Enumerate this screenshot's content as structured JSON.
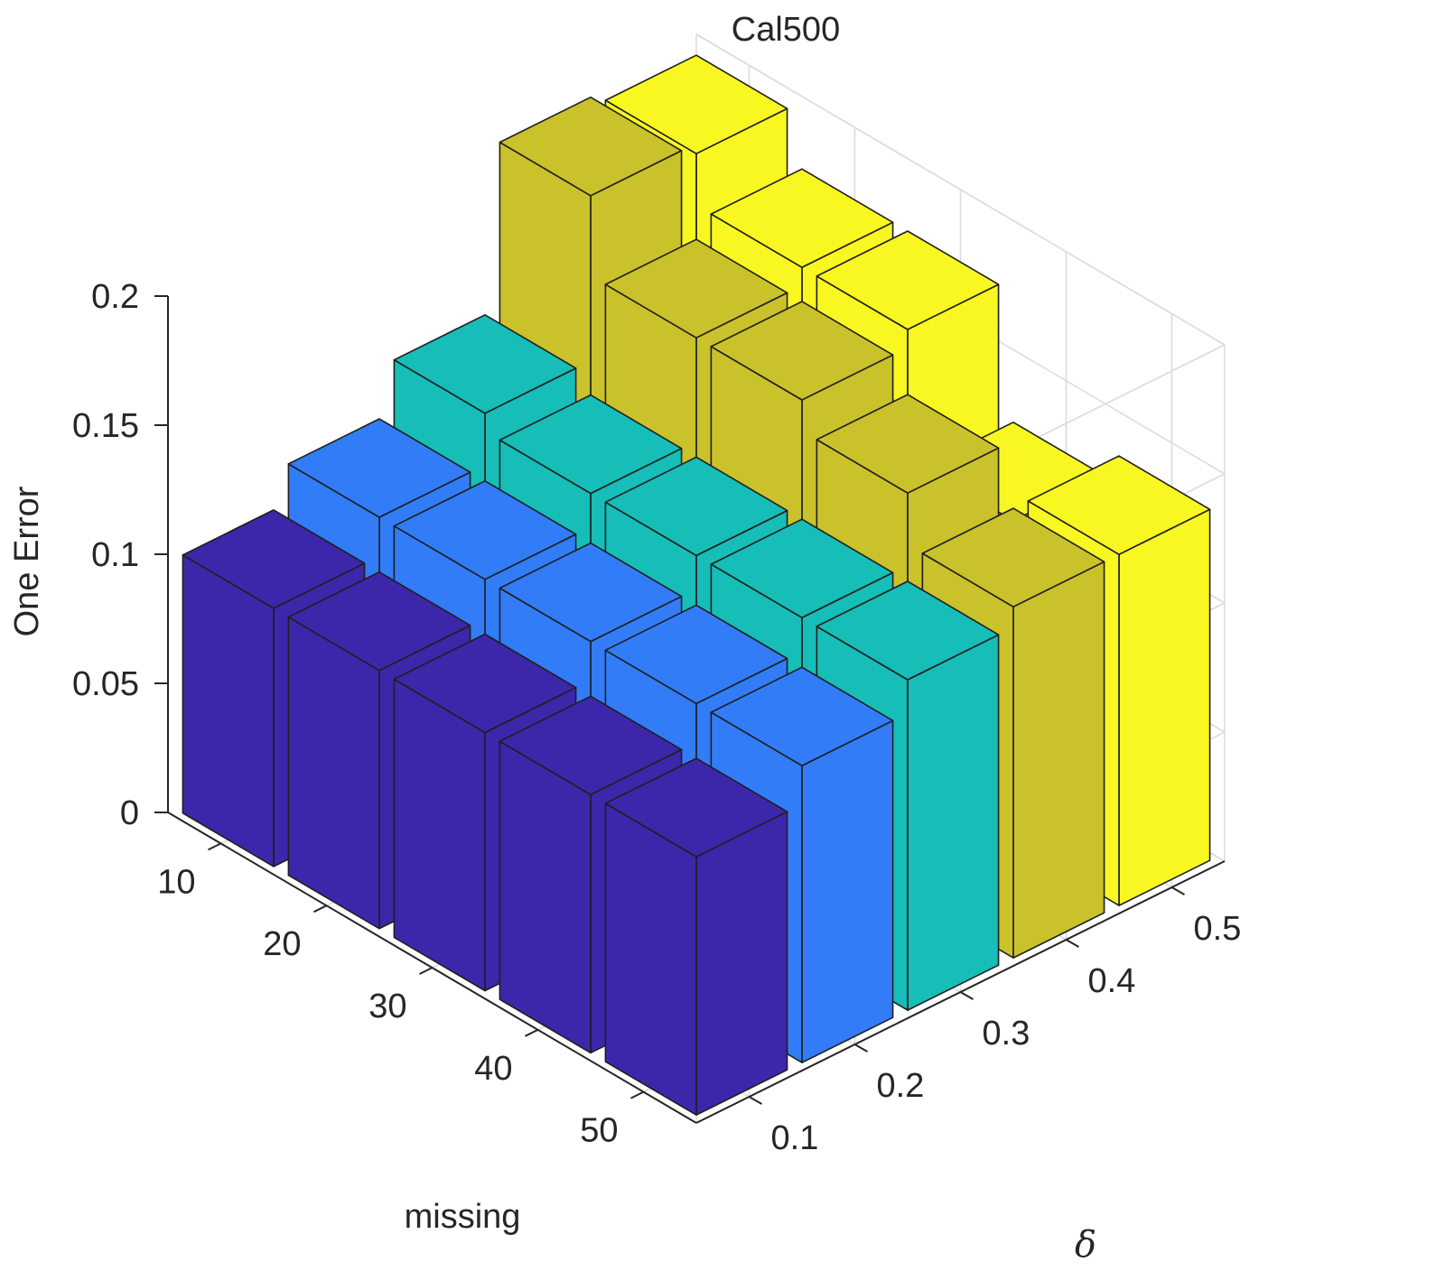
{
  "chart_data": {
    "type": "bar3d",
    "title": "Cal500",
    "xlabel": "missing",
    "ylabel": "δ",
    "zlabel": "One Error",
    "x": [
      10,
      20,
      30,
      40,
      50
    ],
    "y": [
      0.1,
      0.2,
      0.3,
      0.4,
      0.5
    ],
    "x_tick_labels": [
      "10",
      "20",
      "30",
      "40",
      "50"
    ],
    "y_tick_labels": [
      "0.1",
      "0.2",
      "0.3",
      "0.4",
      "0.5"
    ],
    "z_tick_labels": [
      "0",
      "0.05",
      "0.1",
      "0.15",
      "0.2"
    ],
    "zlim": [
      0,
      0.2
    ],
    "grid": true,
    "colors": [
      "#3c27aa",
      "#327cf7",
      "#17bdb7",
      "#c9c22b",
      "#f8f721"
    ],
    "series": [
      {
        "y": 0.1,
        "values": [
          0.1,
          0.1,
          0.1,
          0.1,
          0.1
        ]
      },
      {
        "y": 0.2,
        "values": [
          0.115,
          0.115,
          0.115,
          0.115,
          0.115
        ]
      },
      {
        "y": 0.3,
        "values": [
          0.135,
          0.128,
          0.128,
          0.128,
          0.128
        ]
      },
      {
        "y": 0.4,
        "values": [
          0.199,
          0.168,
          0.168,
          0.156,
          0.136
        ]
      },
      {
        "y": 0.5,
        "values": [
          0.195,
          0.175,
          0.175,
          0.125,
          0.136
        ]
      }
    ]
  }
}
